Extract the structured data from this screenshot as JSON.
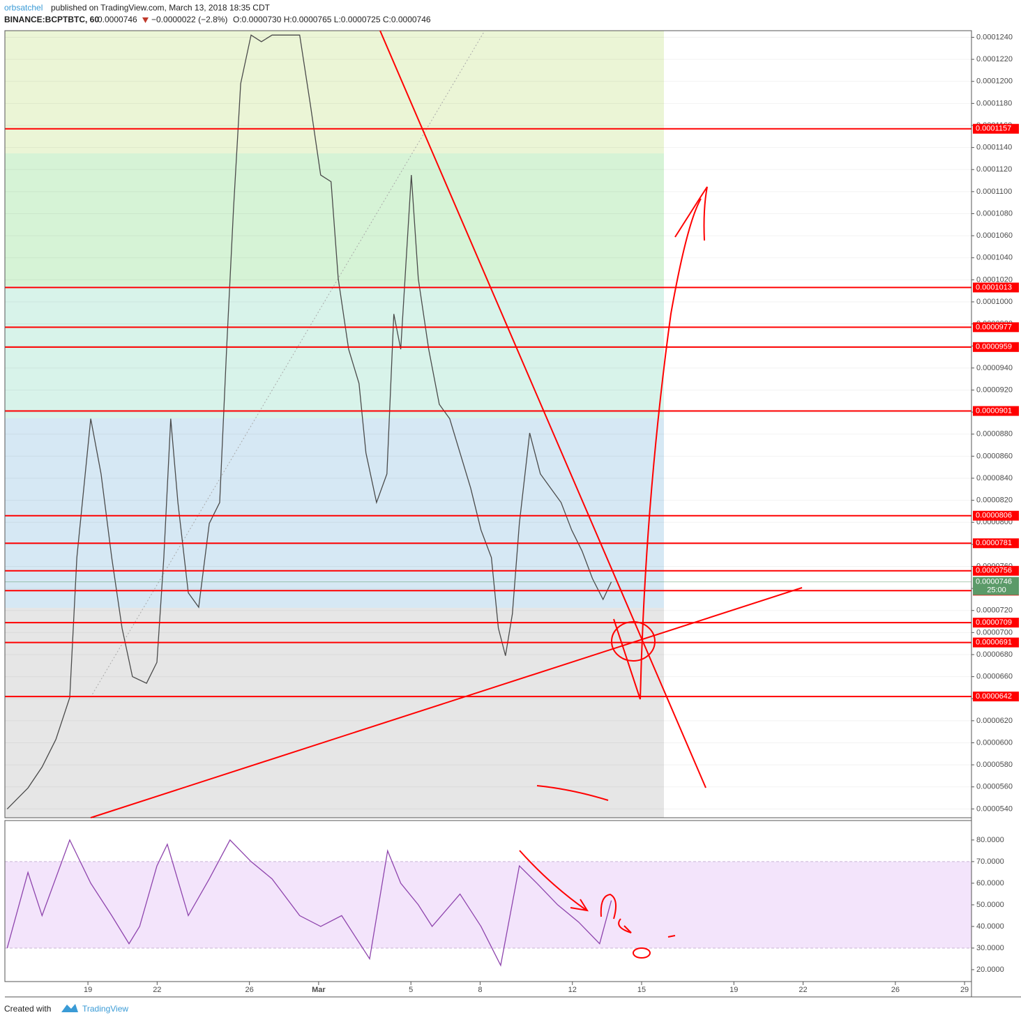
{
  "header": {
    "author": "orbsatchel",
    "published": "published on TradingView.com, March 13, 2018 18:35 CDT",
    "symbol": "BINANCE:BCPTBTC, 60",
    "last": "0.0000746",
    "change": "−0.0000022 (−2.8%)",
    "ohlc": "O:0.0000730 H:0.0000765 L:0.0000725 C:0.0000746"
  },
  "footer": {
    "created": "Created with",
    "brand": "TradingView"
  },
  "chart_data": [
    {
      "type": "line",
      "x": [
        -3.5,
        -2.6,
        -1.99,
        -1.39,
        -0.79,
        -0.48,
        0.12,
        0.57,
        1.03,
        1.48,
        1.93,
        2.54,
        2.99,
        3.29,
        3.59,
        3.9,
        4.35,
        4.8,
        5.26,
        5.71,
        6.01,
        6.31,
        6.62,
        7.07,
        7.52,
        7.98,
        9.18,
        9.64,
        10.09,
        10.54,
        10.85,
        11.3,
        11.75,
        12.05,
        12.51,
        12.96,
        13.26,
        13.56,
        14.02,
        14.32,
        14.77,
        15.23,
        15.68,
        16.13,
        16.59,
        17.04,
        17.49,
        17.79,
        18.1,
        18.4,
        18.7,
        19.15,
        19.61,
        20.06,
        20.51,
        20.97,
        21.42,
        21.87,
        22.33,
        22.69
      ],
      "series": [
        {
          "color": "#4a4a4a",
          "values": [
            5.4e-05,
            5.59e-05,
            5.78e-05,
            6.03e-05,
            6.41e-05,
            7.68e-05,
            8.94e-05,
            8.44e-05,
            7.68e-05,
            7.04e-05,
            6.6e-05,
            6.54e-05,
            6.73e-05,
            7.68e-05,
            8.94e-05,
            8.18e-05,
            7.36e-05,
            7.23e-05,
            7.99e-05,
            8.18e-05,
            9.57e-05,
            0.0001084,
            0.0001198,
            0.0001242,
            0.0001236,
            0.0001242,
            0.0001242,
            0.0001179,
            0.0001115,
            0.0001109,
            0.0001021,
            9.57e-05,
            9.26e-05,
            8.63e-05,
            8.18e-05,
            8.44e-05,
            9.89e-05,
            9.57e-05,
            0.0001115,
            0.0001021,
            9.57e-05,
            9.07e-05,
            8.94e-05,
            8.63e-05,
            8.31e-05,
            7.93e-05,
            7.68e-05,
            7.04e-05,
            6.79e-05,
            7.17e-05,
            7.99e-05,
            8.81e-05,
            8.44e-05,
            8.31e-05,
            8.18e-05,
            7.93e-05,
            7.74e-05,
            7.49e-05,
            7.3e-05,
            7.46e-05
          ]
        }
      ],
      "xlim": [
        -3.6,
        38.3
      ],
      "ylim": [
        5.32e-05,
        0.0001246
      ],
      "yticks": [
        {
          "value": 5.4e-05,
          "label": "0.0000540"
        },
        {
          "value": 5.6e-05,
          "label": "0.0000560"
        },
        {
          "value": 5.8e-05,
          "label": "0.0000580"
        },
        {
          "value": 6e-05,
          "label": "0.0000600"
        },
        {
          "value": 6.2e-05,
          "label": "0.0000620"
        },
        {
          "value": 6.4e-05,
          "label": "0.0000640"
        },
        {
          "value": 6.6e-05,
          "label": "0.0000660"
        },
        {
          "value": 6.8e-05,
          "label": "0.0000680"
        },
        {
          "value": 7e-05,
          "label": "0.0000700"
        },
        {
          "value": 7.2e-05,
          "label": "0.0000720"
        },
        {
          "value": 7.4e-05,
          "label": "0.0000740"
        },
        {
          "value": 7.6e-05,
          "label": "0.0000760"
        },
        {
          "value": 7.8e-05,
          "label": "0.0000780"
        },
        {
          "value": 8e-05,
          "label": "0.0000800"
        },
        {
          "value": 8.2e-05,
          "label": "0.0000820"
        },
        {
          "value": 8.4e-05,
          "label": "0.0000840"
        },
        {
          "value": 8.6e-05,
          "label": "0.0000860"
        },
        {
          "value": 8.8e-05,
          "label": "0.0000880"
        },
        {
          "value": 9e-05,
          "label": "0.0000900"
        },
        {
          "value": 9.2e-05,
          "label": "0.0000920"
        },
        {
          "value": 9.4e-05,
          "label": "0.0000940"
        },
        {
          "value": 9.6e-05,
          "label": "0.0000960"
        },
        {
          "value": 9.8e-05,
          "label": "0.0000980"
        },
        {
          "value": 0.0001,
          "label": "0.0001000"
        },
        {
          "value": 0.000102,
          "label": "0.0001020"
        },
        {
          "value": 0.000104,
          "label": "0.0001040"
        },
        {
          "value": 0.000106,
          "label": "0.0001060"
        },
        {
          "value": 0.000108,
          "label": "0.0001080"
        },
        {
          "value": 0.00011,
          "label": "0.0001100"
        },
        {
          "value": 0.000112,
          "label": "0.0001120"
        },
        {
          "value": 0.000114,
          "label": "0.0001140"
        },
        {
          "value": 0.000116,
          "label": "0.0001160"
        },
        {
          "value": 0.000118,
          "label": "0.0001180"
        },
        {
          "value": 0.00012,
          "label": "0.0001200"
        },
        {
          "value": 0.000122,
          "label": "0.0001220"
        },
        {
          "value": 0.000124,
          "label": "0.0001240"
        }
      ],
      "grid": true,
      "levels": [
        0.0001157,
        0.0001013,
        9.77e-05,
        9.59e-05,
        9.01e-05,
        8.06e-05,
        7.81e-05,
        7.56e-05,
        7.38e-05,
        7.09e-05,
        6.91e-05,
        6.42e-05
      ],
      "level_color": "#ff0000",
      "last": 7.46e-05,
      "last_color": "#5b9a68",
      "countdown": "25:00"
    },
    {
      "type": "line",
      "x": [
        -3.5,
        -2.6,
        -1.99,
        -0.79,
        0.12,
        1.03,
        1.78,
        2.24,
        2.99,
        3.44,
        4.35,
        5.26,
        6.16,
        7.07,
        7.98,
        9.18,
        10.09,
        11.0,
        12.21,
        12.99,
        13.56,
        14.32,
        14.92,
        16.13,
        17.04,
        17.89,
        18.7,
        19.46,
        20.36,
        21.27,
        22.18,
        22.69
      ],
      "series": [
        {
          "color": "#8e44ad",
          "values": [
            30,
            65,
            45,
            80,
            60,
            45,
            32,
            40,
            68,
            78,
            45,
            62,
            80,
            70,
            62,
            45,
            40,
            45,
            25,
            75,
            60,
            50,
            40,
            55,
            40,
            22,
            68,
            60,
            50,
            42,
            32,
            52
          ]
        }
      ],
      "band": [
        30,
        70
      ],
      "band_color": "#f3e4fb",
      "xlim": [
        -3.6,
        38.3
      ],
      "xticks": [
        {
          "value": 0,
          "label": "19"
        },
        {
          "value": 3,
          "label": "22"
        },
        {
          "value": 7,
          "label": "26"
        },
        {
          "value": 10,
          "label": "Mar"
        },
        {
          "value": 14,
          "label": "5"
        },
        {
          "value": 17,
          "label": "8"
        },
        {
          "value": 21,
          "label": "12"
        },
        {
          "value": 24,
          "label": "15"
        },
        {
          "value": 28,
          "label": "19"
        },
        {
          "value": 31,
          "label": "22"
        },
        {
          "value": 35,
          "label": "26"
        },
        {
          "value": 38,
          "label": "29"
        }
      ],
      "ylim": [
        14.5,
        89
      ],
      "yticks": [
        {
          "value": 20,
          "label": "20.0000"
        },
        {
          "value": 30,
          "label": "30.0000"
        },
        {
          "value": 40,
          "label": "40.0000"
        },
        {
          "value": 50,
          "label": "50.0000"
        },
        {
          "value": 60,
          "label": "60.0000"
        },
        {
          "value": 70,
          "label": "70.0000"
        },
        {
          "value": 80,
          "label": "80.0000"
        }
      ]
    }
  ]
}
